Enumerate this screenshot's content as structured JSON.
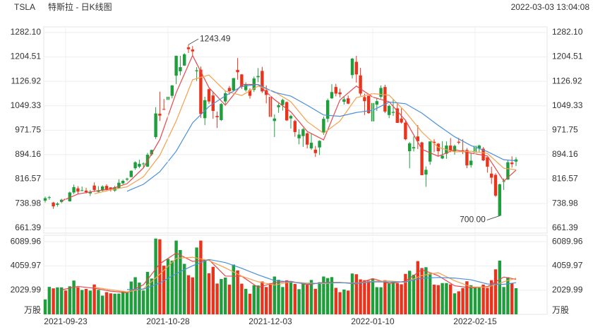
{
  "header": {
    "symbol": "TSLA",
    "title": "特斯拉 - 日K线图",
    "timestamp": "2022-03-03 13:04:08"
  },
  "chart_data": [
    {
      "type": "candlestick",
      "up_color": "#1f9e3c",
      "down_color": "#e8341c",
      "ylim": [
        645,
        1300
      ],
      "yticks": [
        661.39,
        738.98,
        816.57,
        894.16,
        971.75,
        1049.33,
        1126.92,
        1204.51,
        {
          "value": 1282.1,
          "label": "1282.10"
        }
      ],
      "grid": true,
      "open": [
        748,
        757,
        742,
        735,
        744,
        754,
        746,
        774,
        787,
        779,
        780,
        771,
        796,
        776,
        780,
        795,
        790,
        780,
        787,
        803,
        815,
        823,
        851,
        856,
        865,
        856,
        895,
        950,
        1024,
        1039,
        1068,
        1081,
        1145,
        1159,
        1177,
        1235,
        1228,
        1159,
        1164,
        1010,
        1102,
        1082,
        1017,
        1004,
        1063,
        1106,
        1098,
        1163,
        1149,
        1099,
        1099,
        1100,
        1140,
        1160,
        1099,
        1078,
        1001,
        1045,
        1052,
        1061,
        1009,
        1001,
        946,
        953,
        962,
        914,
        910,
        917,
        965,
        1008,
        1073,
        1109,
        1092,
        1062,
        1073,
        1147,
        1189,
        1146,
        1077,
        1081,
        1000,
        1053,
        1078,
        1109,
        1020,
        1027,
        1041,
        1009,
        996,
        905,
        914,
        952,
        933,
        831,
        872,
        935,
        929,
        882,
        897,
        923,
        905,
        935,
        908,
        909,
        861,
        900,
        914,
        913,
        886,
        834,
        830,
        700,
        809,
        815,
        869,
        872
      ],
      "high": [
        761,
        763,
        744,
        743,
        754,
        758,
        777,
        799,
        794,
        793,
        789,
        782,
        806,
        794,
        797,
        800,
        791,
        795,
        816,
        815,
        821,
        844,
        873,
        878,
        870,
        900,
        910,
        1045,
        1094,
        1071,
        1082,
        1115,
        1209,
        1208,
        1216,
        1243.49,
        1239,
        1172,
        1174,
        1078,
        1104,
        1093,
        1031,
        1058,
        1098,
        1112,
        1138,
        1201,
        1150,
        1124,
        1105,
        1142,
        1169,
        1173,
        1114,
        1081,
        1022,
        1057,
        1072,
        1063,
        1021,
        1005,
        975,
        979,
        965,
        960,
        922,
        940,
        1015,
        1072,
        1118,
        1119,
        1104,
        1080,
        1082,
        1201,
        1208,
        1170,
        1088,
        1082,
        1059,
        1075,
        1114,
        1116,
        1053,
        1070,
        1055,
        1041,
        1004,
        934,
        952,
        988,
        935,
        857,
        937,
        943,
        931,
        937,
        936,
        947,
        926,
        947,
        943,
        915,
        898,
        923,
        926,
        918,
        886,
        856,
        835,
        802,
        819,
        876,
        889,
        886
      ],
      "low": [
        742,
        751,
        722,
        729,
        740,
        744,
        745,
        769,
        770,
        778,
        771,
        763,
        776,
        773,
        777,
        781,
        777,
        776,
        786,
        800,
        810,
        822,
        846,
        851,
        851,
        855,
        890,
        944,
        1001,
        1036,
        1054,
        1073,
        1118,
        1146,
        1176,
        1217,
        1209,
        1128,
        1011,
        988,
        1055,
        1008,
        979,
        1001,
        1054,
        1085,
        1094,
        1132,
        1103,
        1094,
        1072,
        1093,
        1124,
        1090,
        1057,
        1000,
        950,
        1027,
        1034,
        1001,
        977,
        951,
        927,
        919,
        914,
        909,
        887,
        893,
        957,
        997,
        1071,
        1079,
        1076,
        1053,
        1054,
        1136,
        1123,
        1081,
        1020,
        1024,
        980,
        1033,
        1072,
        1026,
        1010,
        1017,
        995,
        993,
        940,
        851,
        904,
        912,
        829,
        792,
        862,
        902,
        889,
        880,
        881,
        902,
        894,
        927,
        896,
        851,
        853,
        893,
        901,
        874,
        837,
        801,
        760,
        700,
        782,
        814,
        853,
        858
      ],
      "close": [
        756,
        759,
        730,
        739,
        751,
        753,
        774,
        791,
        777,
        781,
        775,
        776,
        782,
        781,
        793,
        782,
        785,
        791,
        805,
        811,
        818,
        843,
        870,
        865,
        866,
        894,
        909,
        1025,
        1018,
        1037,
        1078,
        1114,
        1208,
        1172,
        1213,
        1229,
        1222,
        1162,
        1023,
        1067,
        1063,
        1033,
        1013,
        1055,
        1089,
        1096,
        1137,
        1156,
        1109,
        1116,
        1081,
        1136,
        1144,
        1095,
        1084,
        1014,
        1009,
        1051,
        1068,
        1003,
        1017,
        966,
        958,
        975,
        926,
        932,
        899,
        938,
        1008,
        1067,
        1093,
        1088,
        1086,
        1070,
        1056,
        1199,
        1149,
        1088,
        1064,
        1026,
        1058,
        1064,
        1106,
        1031,
        1049,
        1030,
        995,
        996,
        943,
        930,
        918,
        937,
        829,
        846,
        936,
        931,
        905,
        891,
        923,
        907,
        922,
        932,
        904,
        860,
        875,
        922,
        923,
        876,
        856,
        821,
        764,
        800,
        810,
        870,
        864,
        879
      ],
      "series": [
        {
          "color": "#e8464a",
          "x": [
            4,
            8,
            12,
            16,
            20,
            24,
            28,
            32,
            36,
            40,
            44,
            48,
            52,
            56,
            60,
            64,
            68,
            72,
            76,
            80,
            84,
            88,
            92,
            96,
            100,
            104,
            108,
            112,
            115
          ],
          "values": [
            747,
            769,
            778,
            785,
            802,
            852,
            942,
            1091,
            1209,
            1107,
            1051,
            1117,
            1117,
            1069,
            1030,
            968,
            941,
            1068,
            1112,
            1077,
            1062,
            1003,
            911,
            889,
            910,
            899,
            890,
            810,
            845
          ]
        },
        {
          "color": "#f5a04a",
          "x": [
            12,
            16,
            20,
            24,
            28,
            32,
            36,
            40,
            44,
            48,
            52,
            56,
            60,
            64,
            68,
            72,
            76,
            80,
            84,
            88,
            92,
            96,
            100,
            104,
            108,
            112,
            115
          ],
          "values": [
            770,
            782,
            792,
            824,
            892,
            1001,
            1132,
            1147,
            1096,
            1082,
            1112,
            1094,
            1062,
            999,
            962,
            1001,
            1075,
            1088,
            1083,
            1030,
            966,
            917,
            903,
            905,
            898,
            851,
            846
          ]
        },
        {
          "color": "#4a90d9",
          "x": [
            20,
            24,
            28,
            32,
            36,
            40,
            44,
            48,
            52,
            56,
            60,
            64,
            68,
            72,
            76,
            80,
            84,
            88,
            92,
            96,
            100,
            104,
            108,
            112,
            115
          ],
          "values": [
            778,
            800,
            840,
            905,
            995,
            1047,
            1081,
            1111,
            1117,
            1092,
            1080,
            1051,
            1020,
            1016,
            1028,
            1035,
            1061,
            1056,
            1026,
            987,
            951,
            923,
            904,
            878,
            875
          ]
        }
      ],
      "annotations": [
        {
          "x": 35,
          "value": 1243.49,
          "label": "1243.49"
        },
        {
          "x": 111,
          "value": 700,
          "label": "700.00"
        }
      ]
    },
    {
      "type": "bar",
      "unit": "万股",
      "ylim": [
        0,
        6630
      ],
      "yticks": [
        2029.99,
        4059.97,
        6089.96
      ],
      "categories": [
        null,
        null,
        null,
        null,
        null,
        "2021-09-23",
        null,
        null,
        null,
        null,
        null,
        null,
        null,
        null,
        null,
        null,
        null,
        null,
        null,
        null,
        null,
        null,
        null,
        null,
        null,
        null,
        null,
        null,
        null,
        null,
        "2021-10-28",
        null,
        null,
        null,
        null,
        null,
        null,
        null,
        null,
        null,
        null,
        null,
        null,
        null,
        null,
        null,
        null,
        null,
        null,
        null,
        null,
        null,
        null,
        null,
        null,
        "2021-12-03",
        null,
        null,
        null,
        null,
        null,
        null,
        null,
        null,
        null,
        null,
        null,
        null,
        null,
        null,
        null,
        null,
        null,
        null,
        null,
        null,
        null,
        null,
        null,
        null,
        "2022-01-10",
        null,
        null,
        null,
        null,
        null,
        null,
        null,
        null,
        null,
        null,
        null,
        null,
        null,
        null,
        null,
        null,
        null,
        null,
        null,
        null,
        null,
        null,
        null,
        null,
        "2022-02-15",
        null,
        null,
        null,
        null,
        null,
        null,
        null,
        null,
        null,
        null
      ],
      "values": [
        1250,
        2300,
        2180,
        2260,
        2260,
        2000,
        2350,
        2830,
        2270,
        2040,
        2130,
        1990,
        2500,
        2050,
        1570,
        1860,
        1760,
        1730,
        1740,
        1960,
        1870,
        2750,
        3110,
        2660,
        2000,
        3560,
        3000,
        6350,
        6290,
        4080,
        4650,
        4500,
        6180,
        5390,
        4230,
        3280,
        3100,
        5600,
        6180,
        4580,
        3440,
        3980,
        2580,
        2960,
        3080,
        2490,
        4170,
        3680,
        2570,
        2140,
        1730,
        2440,
        2420,
        2750,
        2290,
        2610,
        3170,
        2890,
        2290,
        2850,
        2660,
        2550,
        2110,
        2650,
        2460,
        2880,
        2140,
        2690,
        3170,
        3040,
        3120,
        2220,
        1860,
        2080,
        1990,
        3420,
        3360,
        2930,
        2860,
        2820,
        3000,
        2280,
        2270,
        2860,
        2580,
        2750,
        2620,
        2520,
        3390,
        3650,
        3320,
        4460,
        3880,
        3950,
        3430,
        2490,
        2450,
        2620,
        2620,
        2510,
        1760,
        1930,
        2200,
        2770,
        2440,
        2250,
        2240,
        2490,
        2210,
        2860,
        3770,
        4500,
        2290,
        3110,
        2600,
        2190
      ],
      "series": [
        {
          "color": "#e8464a",
          "x": [
            4,
            8,
            12,
            16,
            20,
            24,
            28,
            32,
            36,
            40,
            44,
            48,
            52,
            56,
            60,
            64,
            68,
            72,
            76,
            80,
            84,
            88,
            92,
            96,
            100,
            104,
            108,
            112,
            115
          ],
          "values": [
            2050,
            2342,
            2186,
            1948,
            1812,
            2478,
            4240,
            5140,
            4436,
            4580,
            3208,
            3198,
            2260,
            2648,
            2772,
            2486,
            2668,
            2682,
            2542,
            2994,
            2598,
            2772,
            3740,
            3240,
            2392,
            2220,
            2326,
            3126,
            2938
          ]
        },
        {
          "color": "#f5a04a",
          "x": [
            12,
            16,
            20,
            24,
            28,
            32,
            36,
            40,
            44,
            48,
            52,
            56,
            60,
            64,
            68,
            72,
            76,
            80,
            84,
            88,
            92,
            96,
            100,
            104,
            108,
            112,
            115
          ],
          "values": [
            2264,
            2067,
            1880,
            2145,
            3359,
            4690,
            4788,
            4508,
            3894,
            3203,
            2729,
            2454,
            2710,
            2629,
            2577,
            2675,
            2612,
            2768,
            2796,
            2685,
            3256,
            3490,
            2816,
            2306,
            2273,
            2726,
            3032
          ]
        },
        {
          "color": "#4a90d9",
          "x": [
            20,
            24,
            28,
            32,
            36,
            40,
            44,
            48,
            52,
            56,
            60,
            64,
            68,
            72,
            76,
            80,
            84,
            88,
            92,
            96,
            100,
            104,
            108,
            112,
            115
          ],
          "values": [
            2072,
            2106,
            2620,
            3418,
            4074,
            4599,
            4341,
            3856,
            3312,
            2829,
            2720,
            2542,
            2644,
            2652,
            2595,
            2722,
            2704,
            2727,
            3026,
            3088,
            3036,
            2898,
            2545,
            2516,
            2653
          ]
        }
      ]
    }
  ]
}
